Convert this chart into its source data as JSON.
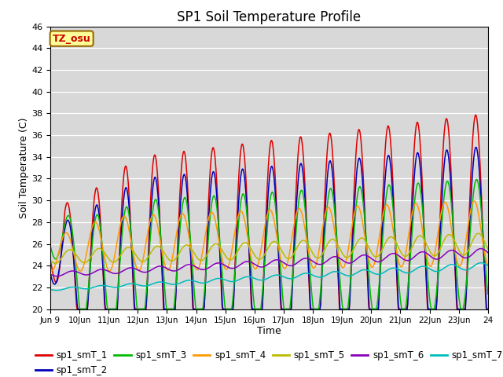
{
  "title": "SP1 Soil Temperature Profile",
  "xlabel": "Time",
  "ylabel": "Soil Temperature (C)",
  "tz_label": "TZ_osu",
  "ylim": [
    20,
    46
  ],
  "x_tick_labels": [
    "Jun 9",
    "10Jun",
    "11Jun",
    "12Jun",
    "13Jun",
    "14Jun",
    "15Jun",
    "16Jun",
    "17Jun",
    "18Jun",
    "19Jun",
    "20Jun",
    "21Jun",
    "22Jun",
    "23Jun",
    "24"
  ],
  "series_colors": [
    "#dd0000",
    "#0000bb",
    "#00bb00",
    "#ff9900",
    "#bbbb00",
    "#8800bb",
    "#00bbbb"
  ],
  "series_names": [
    "sp1_smT_1",
    "sp1_smT_2",
    "sp1_smT_3",
    "sp1_smT_4",
    "sp1_smT_5",
    "sp1_smT_6",
    "sp1_smT_7"
  ],
  "background_color": "#e0e0e0",
  "title_fontsize": 12,
  "axis_fontsize": 9,
  "legend_fontsize": 9
}
